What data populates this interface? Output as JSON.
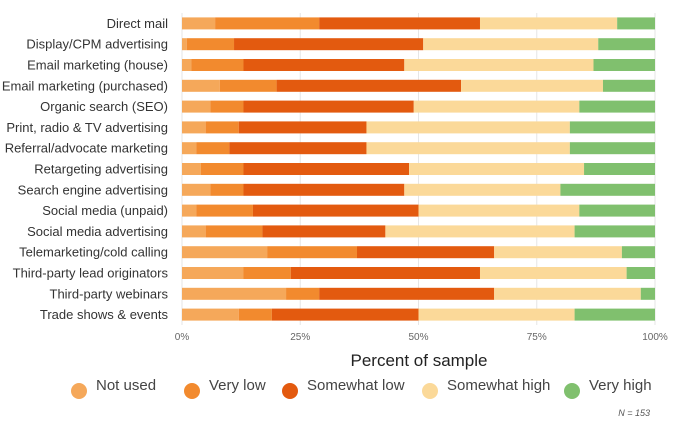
{
  "chart_data": {
    "type": "bar",
    "orientation": "horizontal",
    "stacked": true,
    "title": "",
    "xlabel": "Percent of sample",
    "ylabel": "",
    "xlim": [
      0,
      100
    ],
    "x_ticks": [
      "0%",
      "25%",
      "50%",
      "75%",
      "100%"
    ],
    "categories": [
      "Direct mail",
      "Display/CPM advertising",
      "Email marketing (house)",
      "Email marketing (purchased)",
      "Organic search (SEO)",
      "Print, radio & TV advertising",
      "Referral/advocate marketing",
      "Retargeting advertising",
      "Search engine advertising",
      "Social media (unpaid)",
      "Social media advertising",
      "Telemarketing/cold calling",
      "Third-party lead originators",
      "Third-party webinars",
      "Trade shows & events"
    ],
    "series": [
      {
        "name": "Not used",
        "color": "#f5a85a",
        "values": [
          7,
          1,
          2,
          8,
          6,
          5,
          3,
          4,
          6,
          3,
          5,
          18,
          13,
          22,
          12
        ]
      },
      {
        "name": "Very low",
        "color": "#f28a2e",
        "values": [
          22,
          10,
          11,
          12,
          7,
          7,
          7,
          9,
          7,
          12,
          12,
          19,
          10,
          7,
          7
        ]
      },
      {
        "name": "Somewhat low",
        "color": "#e35a0f",
        "values": [
          34,
          40,
          34,
          39,
          36,
          27,
          29,
          35,
          34,
          35,
          26,
          29,
          40,
          37,
          31
        ]
      },
      {
        "name": "Somewhat high",
        "color": "#fbd999",
        "values": [
          29,
          37,
          40,
          30,
          35,
          43,
          43,
          37,
          33,
          34,
          40,
          27,
          31,
          31,
          33
        ]
      },
      {
        "name": "Very high",
        "color": "#80c06e",
        "values": [
          8,
          12,
          13,
          11,
          16,
          18,
          18,
          15,
          20,
          16,
          17,
          7,
          6,
          3,
          17
        ]
      }
    ],
    "grid": true,
    "legend_position": "bottom",
    "note": "N = 153"
  }
}
